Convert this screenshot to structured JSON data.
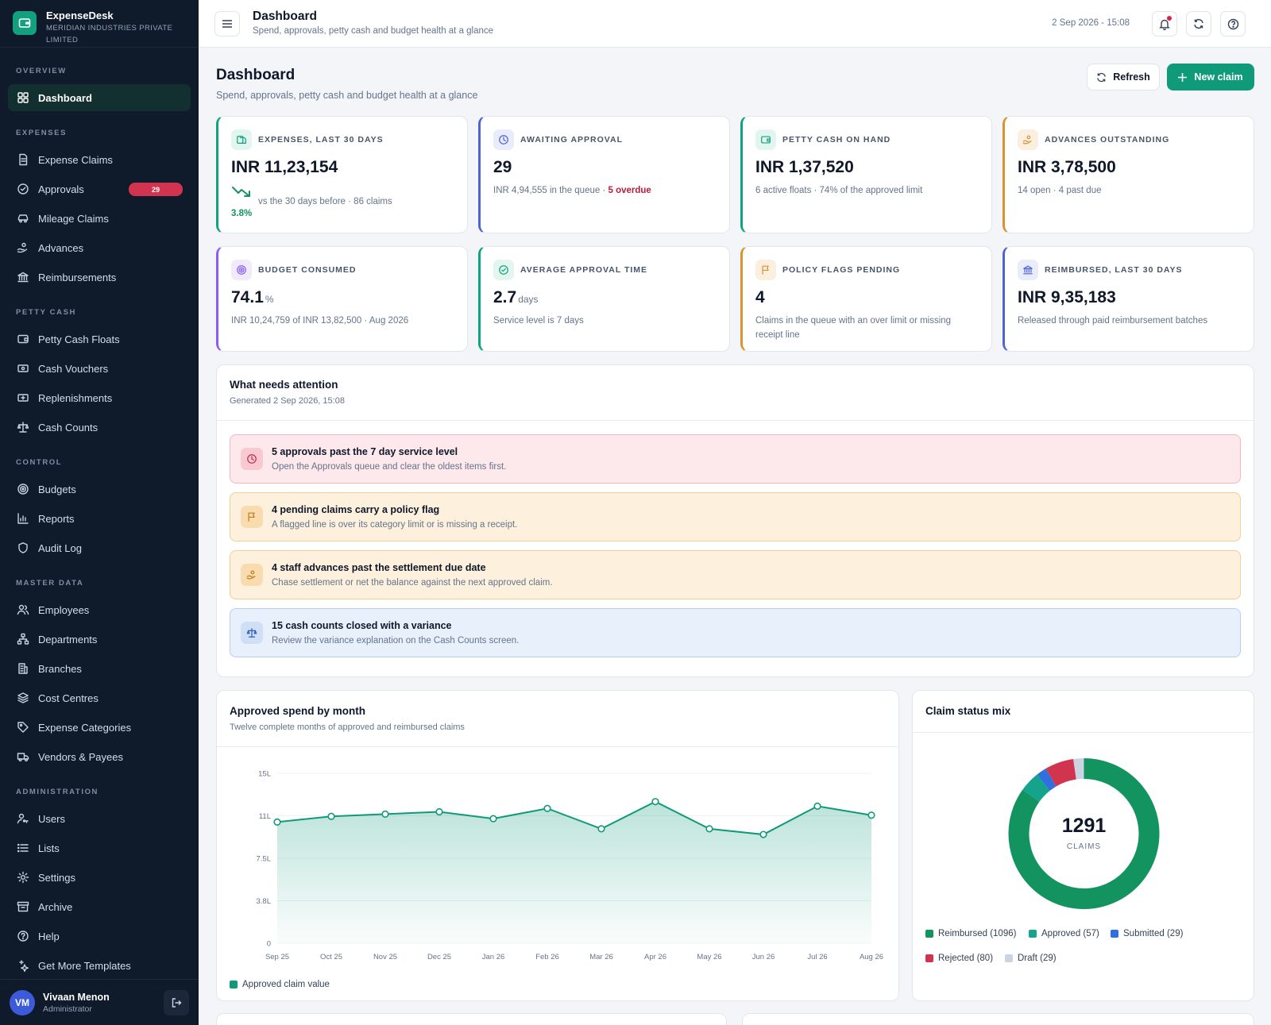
{
  "brand": {
    "name": "ExpenseDesk",
    "org": "MERIDIAN INDUSTRIES PRIVATE LIMITED"
  },
  "nav": [
    {
      "section": "OVERVIEW",
      "items": [
        {
          "label": "Dashboard",
          "icon": "grid-icon",
          "active": true
        }
      ]
    },
    {
      "section": "EXPENSES",
      "items": [
        {
          "label": "Expense Claims",
          "icon": "document-icon"
        },
        {
          "label": "Approvals",
          "icon": "check-circle-icon",
          "badge": "29"
        },
        {
          "label": "Mileage Claims",
          "icon": "car-icon"
        },
        {
          "label": "Advances",
          "icon": "hand-coin-icon"
        },
        {
          "label": "Reimbursements",
          "icon": "bank-icon"
        }
      ]
    },
    {
      "section": "PETTY CASH",
      "items": [
        {
          "label": "Petty Cash Floats",
          "icon": "wallet-icon"
        },
        {
          "label": "Cash Vouchers",
          "icon": "voucher-icon"
        },
        {
          "label": "Replenishments",
          "icon": "replenish-icon"
        },
        {
          "label": "Cash Counts",
          "icon": "scale-icon"
        }
      ]
    },
    {
      "section": "CONTROL",
      "items": [
        {
          "label": "Budgets",
          "icon": "target-icon"
        },
        {
          "label": "Reports",
          "icon": "bar-chart-icon"
        },
        {
          "label": "Audit Log",
          "icon": "shield-icon"
        }
      ]
    },
    {
      "section": "MASTER DATA",
      "items": [
        {
          "label": "Employees",
          "icon": "users-icon"
        },
        {
          "label": "Departments",
          "icon": "org-chart-icon"
        },
        {
          "label": "Branches",
          "icon": "building-icon"
        },
        {
          "label": "Cost Centres",
          "icon": "layers-icon"
        },
        {
          "label": "Expense Categories",
          "icon": "tag-icon"
        },
        {
          "label": "Vendors & Payees",
          "icon": "truck-icon"
        }
      ]
    },
    {
      "section": "ADMINISTRATION",
      "items": [
        {
          "label": "Users",
          "icon": "user-key-icon"
        },
        {
          "label": "Lists",
          "icon": "list-icon"
        },
        {
          "label": "Settings",
          "icon": "gear-icon"
        },
        {
          "label": "Archive",
          "icon": "archive-icon"
        },
        {
          "label": "Help",
          "icon": "help-icon"
        },
        {
          "label": "Get More Templates",
          "icon": "sparkle-icon"
        }
      ]
    }
  ],
  "user": {
    "initials": "VM",
    "name": "Vivaan Menon",
    "role": "Administrator"
  },
  "topbar": {
    "title": "Dashboard",
    "subtitle": "Spend, approvals, petty cash and budget health at a glance",
    "datetime": "2 Sep 2026 - 15:08"
  },
  "page": {
    "title": "Dashboard",
    "subtitle": "Spend, approvals, petty cash and budget health at a glance",
    "refresh_label": "Refresh",
    "new_claim_label": "New claim"
  },
  "kpis": [
    {
      "label": "EXPENSES, LAST 30 DAYS",
      "value": "INR 11,23,154",
      "trend": "3.8%",
      "sub": "vs the 30 days before · 86 claims",
      "accent": "#10a37f",
      "icon": "receipt-icon"
    },
    {
      "label": "AWAITING APPROVAL",
      "value": "29",
      "sub": "INR 4,94,555 in the queue · ",
      "sub_alert": "5 overdue",
      "accent": "#4f63d8",
      "icon": "clock-icon"
    },
    {
      "label": "PETTY CASH ON HAND",
      "value": "INR 1,37,520",
      "sub": "6 active floats · 74% of the approved limit",
      "accent": "#10a37f",
      "icon": "wallet-icon"
    },
    {
      "label": "ADVANCES OUTSTANDING",
      "value": "INR 3,78,500",
      "sub": "14 open · 4 past due",
      "accent": "#d9922e",
      "icon": "hand-coin-icon"
    },
    {
      "label": "BUDGET CONSUMED",
      "value": "74.1",
      "unit": "%",
      "sub": "INR 10,24,759 of INR 13,82,500 · Aug 2026",
      "accent": "#8b5cf6",
      "icon": "target-icon"
    },
    {
      "label": "AVERAGE APPROVAL TIME",
      "value": "2.7",
      "unit": "days",
      "sub": "Service level is 7 days",
      "accent": "#10a37f",
      "icon": "check-circle-icon"
    },
    {
      "label": "POLICY FLAGS PENDING",
      "value": "4",
      "sub": "Claims in the queue with an over limit or missing receipt line",
      "accent": "#d9922e",
      "icon": "flag-icon"
    },
    {
      "label": "REIMBURSED, LAST 30 DAYS",
      "value": "INR 9,35,183",
      "sub": "Released through paid reimbursement batches",
      "accent": "#4f63d8",
      "icon": "bank-icon"
    }
  ],
  "attention": {
    "title": "What needs attention",
    "generated": "Generated 2 Sep 2026, 15:08",
    "items": [
      {
        "title": "5 approvals past the 7 day service level",
        "desc": "Open the Approvals queue and clear the oldest items first.",
        "tone": "red",
        "icon": "clock-icon"
      },
      {
        "title": "4 pending claims carry a policy flag",
        "desc": "A flagged line is over its category limit or is missing a receipt.",
        "tone": "amber",
        "icon": "flag-icon"
      },
      {
        "title": "4 staff advances past the settlement due date",
        "desc": "Chase settlement or net the balance against the next approved claim.",
        "tone": "amber",
        "icon": "hand-coin-icon"
      },
      {
        "title": "15 cash counts closed with a variance",
        "desc": "Review the variance explanation on the Cash Counts screen.",
        "tone": "blue",
        "icon": "scale-icon"
      }
    ]
  },
  "spend_chart": {
    "title": "Approved spend by month",
    "subtitle": "Twelve complete months of approved and reimbursed claims",
    "legend": "Approved claim value"
  },
  "status_mix": {
    "title": "Claim status mix",
    "total": "1291",
    "total_label": "CLAIMS"
  },
  "colors": {
    "accent": "#0f9a79",
    "sidebar": "#0f1b2b",
    "danger": "#d1344f"
  },
  "chart_data": [
    {
      "type": "area",
      "title": "Approved spend by month",
      "categories": [
        "Sep 25",
        "Oct 25",
        "Nov 25",
        "Dec 25",
        "Jan 26",
        "Feb 26",
        "Mar 26",
        "Apr 26",
        "May 26",
        "Jun 26",
        "Jul 26",
        "Aug 26"
      ],
      "series": [
        {
          "name": "Approved claim value",
          "values": [
            10.7,
            11.2,
            11.4,
            11.6,
            11.0,
            11.9,
            10.1,
            12.5,
            10.1,
            9.6,
            12.1,
            11.3
          ]
        }
      ],
      "y_ticks": [
        "0",
        "3.8L",
        "7.5L",
        "11L",
        "15L"
      ],
      "ylim": [
        0,
        15
      ],
      "color": "#0f9a79",
      "grid": true,
      "legend": "bottom-left"
    },
    {
      "type": "pie",
      "title": "Claim status mix",
      "slices": [
        {
          "label": "Reimbursed (1096)",
          "value": 1096,
          "color": "#12935f"
        },
        {
          "label": "Approved (57)",
          "value": 57,
          "color": "#14a38b"
        },
        {
          "label": "Submitted (29)",
          "value": 29,
          "color": "#2f6fde"
        },
        {
          "label": "Rejected (80)",
          "value": 80,
          "color": "#d1344f"
        },
        {
          "label": "Draft (29)",
          "value": 29,
          "color": "#cbd5e1"
        }
      ],
      "legend": "bottom"
    }
  ]
}
